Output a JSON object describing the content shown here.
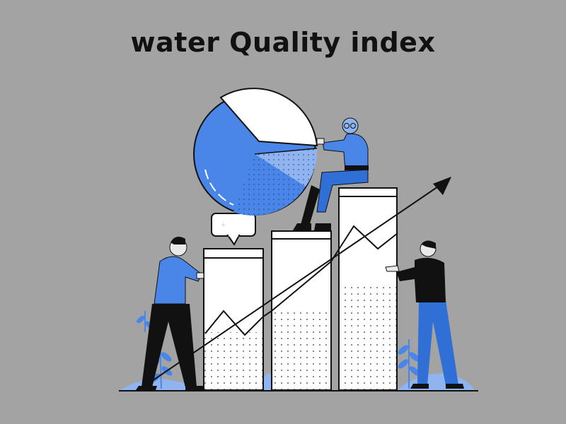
{
  "title": "water Quality index",
  "illustration": {
    "subject": "people-with-bar-chart-and-pie-chart",
    "colors": {
      "background": "#a3a3a3",
      "accent_blue": "#4a86e8",
      "dark_blue": "#2f6fd6",
      "light_blue": "#8fb4f0",
      "skin": "#e8e8e8",
      "ink": "#111111",
      "white": "#ffffff"
    }
  }
}
